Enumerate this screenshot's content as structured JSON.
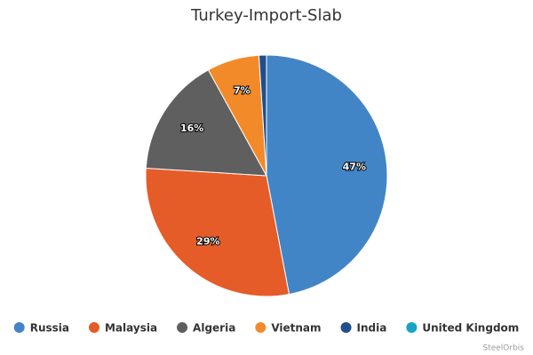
{
  "chart_data": {
    "type": "pie",
    "title": "Turkey-Import-Slab",
    "categories": [
      "Russia",
      "Malaysia",
      "Algeria",
      "Vietnam",
      "India",
      "United Kingdom"
    ],
    "values": [
      47,
      29,
      16,
      7,
      1,
      0
    ],
    "value_labels": [
      "47%",
      "29%",
      "16%",
      "7%",
      null,
      null
    ],
    "colors": [
      "#4285c6",
      "#e55c28",
      "#5f5f5f",
      "#f28a2a",
      "#1f4e8c",
      "#17a4c4"
    ],
    "legend": "bottom",
    "credits": "SteelOrbis"
  }
}
